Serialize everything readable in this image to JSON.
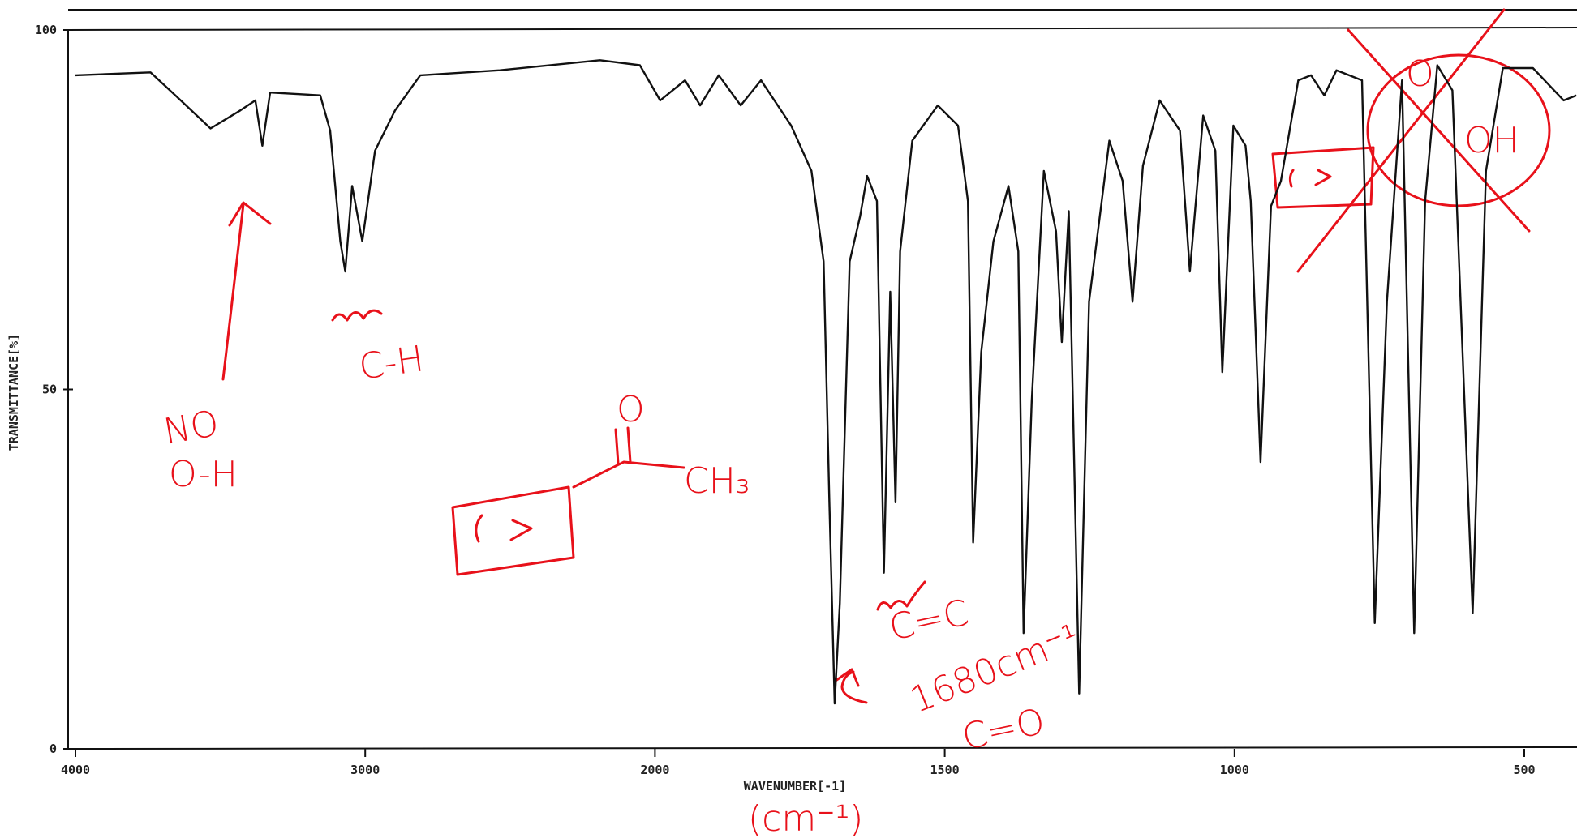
{
  "chart_data": {
    "type": "line",
    "x_label": "WAVENUMBER[-1]",
    "y_label": "TRANSMITTANCE[%]",
    "xlim": [
      4000,
      410
    ],
    "xticks": [
      4000,
      3000,
      2000,
      1500,
      1000,
      500
    ],
    "ylim": [
      0,
      100
    ],
    "yticks": [
      0,
      50,
      100
    ],
    "series": [
      {
        "color": "#111111",
        "x": [
          4000,
          3741,
          3655,
          3534,
          3431,
          3379,
          3355,
          3328,
          3155,
          3121,
          3086,
          3069,
          3045,
          3010,
          2966,
          2897,
          2810,
          2535,
          2190,
          2052,
          1991,
          1948,
          1922,
          1890,
          1852,
          1817,
          1765,
          1730,
          1709,
          1699,
          1690,
          1681,
          1664,
          1646,
          1634,
          1617,
          1605,
          1594,
          1585,
          1577,
          1556,
          1512,
          1477,
          1460,
          1451,
          1437,
          1416,
          1390,
          1373,
          1364,
          1350,
          1329,
          1308,
          1298,
          1286,
          1268,
          1251,
          1216,
          1193,
          1176,
          1158,
          1129,
          1094,
          1077,
          1054,
          1033,
          1021,
          1002,
          981,
          972,
          955,
          937,
          920,
          890,
          868,
          845,
          824,
          780,
          758,
          737,
          711,
          690,
          671,
          650,
          624,
          589,
          566,
          537,
          485,
          432,
          410
        ],
        "values": [
          93.7,
          94.1,
          90.9,
          86.3,
          88.8,
          90.2,
          83.9,
          91.3,
          90.9,
          86,
          70.6,
          66.4,
          78.3,
          70.6,
          83.2,
          88.8,
          93.7,
          94.4,
          95.8,
          95.1,
          90.2,
          93,
          89.5,
          93.7,
          89.5,
          93,
          86.7,
          80.4,
          67.8,
          34.3,
          6.3,
          20.3,
          67.8,
          74.1,
          79.7,
          76.2,
          24.5,
          63.6,
          34.3,
          69.2,
          84.6,
          89.5,
          86.7,
          76.2,
          28.7,
          55.2,
          70.6,
          78.3,
          69.2,
          16.1,
          48.3,
          80.4,
          72,
          56.6,
          74.8,
          7.7,
          62.2,
          84.6,
          79,
          62.2,
          81.1,
          90.2,
          86,
          66.4,
          88.1,
          83.2,
          52.4,
          86.7,
          83.9,
          76.2,
          39.9,
          75.5,
          79,
          93,
          93.7,
          90.9,
          94.4,
          93,
          17.5,
          62.2,
          93,
          16.1,
          76.2,
          95.1,
          91.6,
          18.9,
          80.4,
          94.7,
          94.7,
          90.2,
          90.9
        ]
      }
    ],
    "annotations": [
      "NO",
      "O-H",
      "C-H",
      "CH₃",
      "O",
      "C=C",
      "1680cm⁻¹",
      "C=O",
      "(cm⁻¹)",
      "O",
      "OH"
    ],
    "annotation_color": "#e8111a"
  }
}
